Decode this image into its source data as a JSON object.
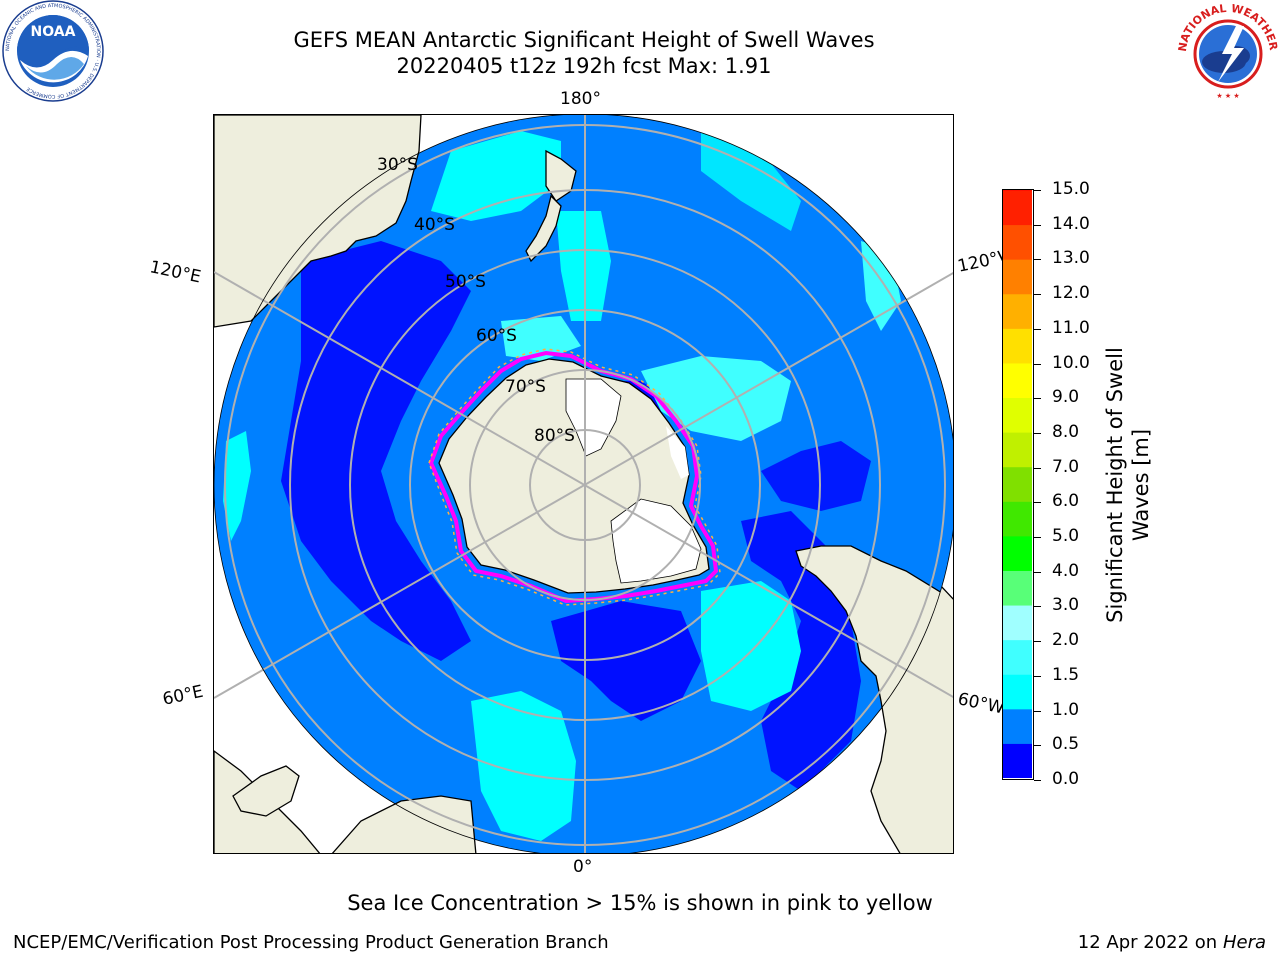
{
  "title": {
    "line1": "GEFS MEAN Antarctic Significant Height of Swell Waves",
    "line2": "20220405 t12z 192h fcst   Max: 1.91"
  },
  "logos": {
    "left": {
      "icon": "noaa-logo",
      "text": "NOAA",
      "ring_text": "NATIONAL OCEANIC AND ATMOSPHERIC ADMINISTRATION · U.S. DEPARTMENT OF COMMERCE"
    },
    "right": {
      "icon": "national-weather-service-logo",
      "ring_text": "NATIONAL WEATHER SERVICE"
    }
  },
  "map": {
    "projection": "south-polar-stereographic",
    "longitude_labels": [
      "180°",
      "120°E",
      "60°E",
      "0°",
      "60°W",
      "120°W"
    ],
    "latitude_labels": [
      "30°S",
      "40°S",
      "50°S",
      "60°S",
      "70°S",
      "80°S"
    ],
    "colors": {
      "ocean_base": "#0080ff",
      "land": "#eeeedd",
      "ice_shelf": "#ffffff",
      "grid": "#b0b0b0",
      "low_swell": "#0000ff",
      "mid_swell": "#00ffff",
      "ice_edge": "#ff00ff"
    }
  },
  "colorbar": {
    "title_line1": "Significant Height of Swell",
    "title_line2": "Waves [m]",
    "ticks": [
      "15.0",
      "14.0",
      "13.0",
      "12.0",
      "11.0",
      "10.0",
      "9.0",
      "8.0",
      "7.0",
      "6.0",
      "5.0",
      "4.0",
      "3.0",
      "2.0",
      "1.5",
      "1.0",
      "0.5",
      "0.0"
    ],
    "colors_bottom_to_top": [
      "#0000ff",
      "#0080ff",
      "#00ffff",
      "#40ffff",
      "#a0ffff",
      "#58ff78",
      "#00ff00",
      "#40e800",
      "#80e000",
      "#c0f000",
      "#e0ff00",
      "#ffff00",
      "#ffe000",
      "#ffb000",
      "#ff8000",
      "#ff5000",
      "#ff2000",
      "#ff0000"
    ]
  },
  "note": "Sea Ice Concentration > 15% is shown in pink to yellow",
  "footer": {
    "left": "NCEP/EMC/Verification Post Processing Product Generation Branch",
    "right_prefix": "12 Apr 2022 on ",
    "right_host": "Hera"
  }
}
